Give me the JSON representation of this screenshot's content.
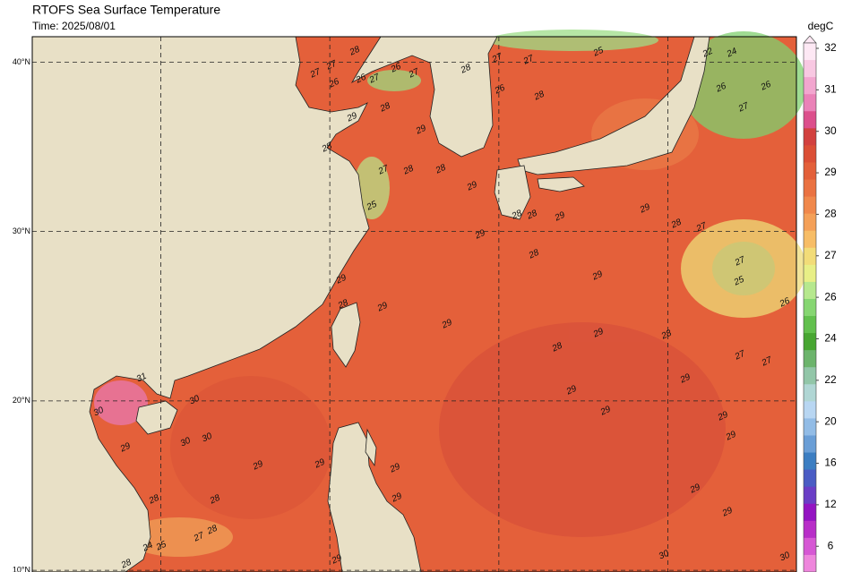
{
  "header": {
    "title": "RTOFS Sea Surface Temperature",
    "time": "Time: 2025/08/01"
  },
  "map": {
    "lat_range": [
      41.5,
      9.9
    ],
    "lon_range": [
      102.4,
      147.6
    ],
    "lat_ticks": [
      {
        "value": 40,
        "label": "40°N"
      },
      {
        "value": 30,
        "label": "30°N"
      },
      {
        "value": 20,
        "label": "20°N"
      },
      {
        "value": 10,
        "label": "10°N"
      }
    ],
    "lon_lines": [
      110,
      120,
      130,
      140
    ],
    "sea_color": "#e4603a",
    "contour_labels": [
      28,
      27,
      27,
      26,
      26,
      27,
      26,
      27,
      28,
      27,
      27,
      25,
      26,
      28,
      29,
      28,
      29,
      28,
      27,
      28,
      28,
      25,
      29,
      28,
      28,
      29,
      29,
      28,
      29,
      29,
      28,
      27,
      27,
      25,
      26,
      29,
      28,
      29,
      29,
      28,
      29,
      28,
      27,
      27,
      29,
      29,
      29,
      29,
      29,
      29,
      29,
      29,
      28,
      29,
      29,
      29,
      31,
      30,
      30,
      30,
      30,
      29,
      28,
      24,
      25,
      27,
      28,
      28,
      30,
      30,
      29,
      26,
      27,
      26,
      22,
      24
    ]
  },
  "colorbar": {
    "unit": "degC",
    "ticks": [
      32,
      31,
      30,
      29,
      28,
      27,
      26,
      24,
      22,
      20,
      16,
      12,
      6
    ],
    "colors": [
      "#fde8f4",
      "#f8c8e2",
      "#f2a6cf",
      "#ea82b8",
      "#dc4f8c",
      "#d2413f",
      "#db4f36",
      "#e3603a",
      "#ea7242",
      "#f0884c",
      "#f4a058",
      "#f7bd66",
      "#f2dc78",
      "#e8ef86",
      "#b6e88e",
      "#86d672",
      "#62c04e",
      "#48a632",
      "#6cb46c",
      "#92c6a8",
      "#b0d6d4",
      "#b8d6f2",
      "#92bce6",
      "#6a9ed6",
      "#3c7ec2",
      "#4a5cc4",
      "#6a3ec6",
      "#9414c2",
      "#b82ec8",
      "#d658d4",
      "#ee86dc"
    ]
  }
}
